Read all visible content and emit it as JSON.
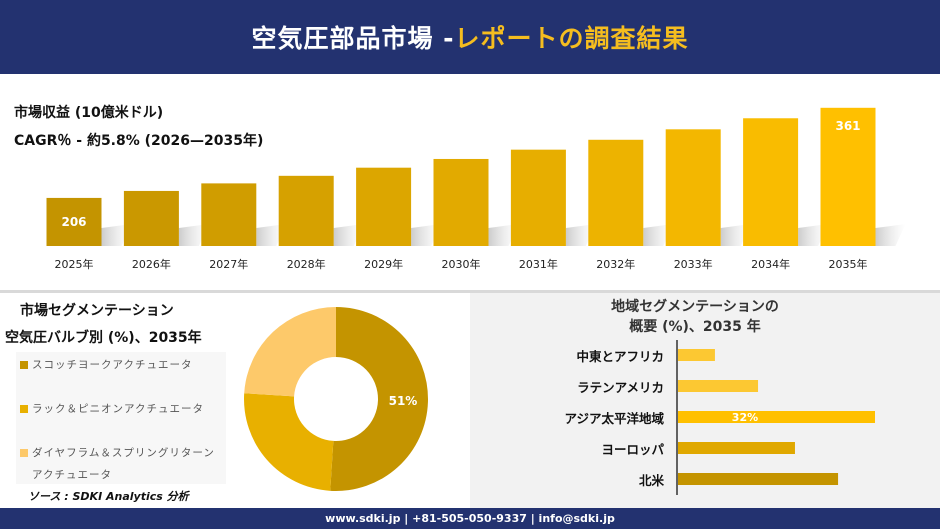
{
  "header": {
    "title_main": "空気圧部品市場 -",
    "title_accent": "レポートの調査結果"
  },
  "metrics": {
    "revenue_label": "市場収益 (10億米ドル)",
    "cagr_label": "CAGR％ - 約5.8% (2026—2035年)"
  },
  "segment": {
    "title": "市場セグメンテーション",
    "subtitle": "空気圧バルブ別 (%)、2035年"
  },
  "regional": {
    "title_line1": "地域セグメンテーションの",
    "title_line2": "概要 (%)、2035 年"
  },
  "source": "ソース : SDKI Analytics 分析",
  "footer": "www.sdki.jp | +81-505-050-9337 | info@sdki.jp",
  "colors": {
    "navy": "#233270",
    "accent": "#f5bd1f",
    "gold_dark": "#c49400",
    "gold": "#ffc000",
    "gold_light": "#fdc96a"
  },
  "chart_data": [
    {
      "type": "bar",
      "categories": [
        "2025年",
        "2026年",
        "2027年",
        "2028年",
        "2029年",
        "2030年",
        "2031年",
        "2032年",
        "2033年",
        "2034年",
        "2035年"
      ],
      "values": [
        206,
        218,
        231,
        244,
        258,
        273,
        289,
        306,
        324,
        343,
        361
      ],
      "data_labels": {
        "0": "206",
        "10": "361"
      },
      "grid": false
    },
    {
      "type": "pie",
      "variant": "donut",
      "slices": [
        {
          "name": "スコッチヨークアクチュエータ",
          "value": 51,
          "color": "#c49400",
          "label": "51%"
        },
        {
          "name": "ラック＆ピニオンアクチュエータ",
          "value": 25,
          "color": "#e8b000"
        },
        {
          "name": "ダイヤフラム＆スプリングリターンアクチュエータ",
          "value": 24,
          "color": "#fdc96a"
        }
      ],
      "legend": "left"
    },
    {
      "type": "bar",
      "orientation": "horizontal",
      "categories": [
        "中東とアフリカ",
        "ラテンアメリカ",
        "アジア太平洋地域",
        "ヨーロッパ",
        "北米"
      ],
      "values": [
        6,
        13,
        32,
        19,
        26
      ],
      "colors": [
        "#fcc832",
        "#fcc832",
        "#ffc000",
        "#e0a800",
        "#c49400"
      ],
      "data_labels": {
        "2": "32%"
      }
    }
  ]
}
